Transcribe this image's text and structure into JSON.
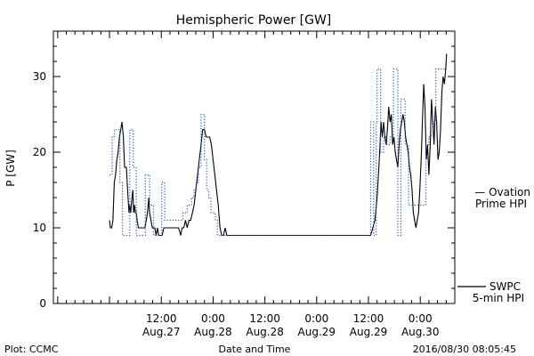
{
  "chart_data": {
    "type": "line",
    "title": "Hemispheric Power [GW]",
    "xlabel": "Date and Time",
    "ylabel": "P [GW]",
    "ylim": [
      0,
      36
    ],
    "xlim": [
      -13,
      80
    ],
    "x_units": "hours from 2016-08-27 00:00",
    "yticks": [
      0,
      10,
      20,
      30
    ],
    "xticks": [
      {
        "x": 12,
        "time": "12:00",
        "date": "Aug.27"
      },
      {
        "x": 24,
        "time": "0:00",
        "date": "Aug.28"
      },
      {
        "x": 36,
        "time": "12:00",
        "date": "Aug.28"
      },
      {
        "x": 48,
        "time": "0:00",
        "date": "Aug.29"
      },
      {
        "x": 60,
        "time": "12:00",
        "date": "Aug.29"
      },
      {
        "x": 72,
        "time": "0:00",
        "date": "Aug.30"
      }
    ],
    "grid": false,
    "legend": [
      {
        "label": "— Ovation",
        "label2": "Prime HPI",
        "color": "#2a55c8"
      },
      {
        "label": "SWPC",
        "label2": "5-min HPI",
        "color": "#000000"
      }
    ],
    "series": [
      {
        "name": "SWPC 5-min HPI",
        "style": "solid",
        "color": "#000000",
        "points": [
          [
            0.0,
            11
          ],
          [
            0.2,
            10
          ],
          [
            0.5,
            10
          ],
          [
            0.8,
            11
          ],
          [
            1.1,
            16
          ],
          [
            1.4,
            17
          ],
          [
            1.7,
            19
          ],
          [
            2.0,
            20
          ],
          [
            2.3,
            22
          ],
          [
            2.6,
            23
          ],
          [
            2.9,
            24
          ],
          [
            3.2,
            22
          ],
          [
            3.5,
            18
          ],
          [
            3.9,
            18
          ],
          [
            4.1,
            16
          ],
          [
            4.3,
            14
          ],
          [
            4.5,
            12
          ],
          [
            4.7,
            13
          ],
          [
            4.9,
            12
          ],
          [
            5.2,
            14
          ],
          [
            5.4,
            15
          ],
          [
            5.6,
            12
          ],
          [
            5.8,
            13
          ],
          [
            6.0,
            12
          ],
          [
            6.2,
            12
          ],
          [
            6.4,
            11
          ],
          [
            6.7,
            10
          ],
          [
            7.0,
            10
          ],
          [
            7.3,
            10
          ],
          [
            7.6,
            10
          ],
          [
            7.9,
            10
          ],
          [
            8.2,
            10
          ],
          [
            8.5,
            11
          ],
          [
            8.8,
            12
          ],
          [
            9.1,
            14
          ],
          [
            9.3,
            12
          ],
          [
            9.6,
            11
          ],
          [
            9.9,
            10
          ],
          [
            10.2,
            10
          ],
          [
            10.5,
            10
          ],
          [
            10.8,
            9
          ],
          [
            11.1,
            10
          ],
          [
            11.4,
            9
          ],
          [
            11.8,
            9
          ],
          [
            12.2,
            9
          ],
          [
            12.6,
            10
          ],
          [
            13.0,
            10
          ],
          [
            13.5,
            10
          ],
          [
            14.0,
            10
          ],
          [
            14.5,
            10
          ],
          [
            15.0,
            10
          ],
          [
            15.5,
            10
          ],
          [
            16.0,
            10
          ],
          [
            16.5,
            9
          ],
          [
            16.8,
            10
          ],
          [
            17.2,
            10
          ],
          [
            17.6,
            11
          ],
          [
            18.0,
            10
          ],
          [
            18.4,
            11
          ],
          [
            18.8,
            11
          ],
          [
            19.2,
            12
          ],
          [
            19.6,
            13
          ],
          [
            20.0,
            15
          ],
          [
            20.4,
            17
          ],
          [
            20.8,
            19
          ],
          [
            21.2,
            21
          ],
          [
            21.6,
            23
          ],
          [
            22.0,
            23
          ],
          [
            22.4,
            22
          ],
          [
            22.8,
            22
          ],
          [
            23.2,
            22
          ],
          [
            23.6,
            21
          ],
          [
            24.0,
            19
          ],
          [
            24.4,
            17
          ],
          [
            24.8,
            15
          ],
          [
            25.2,
            13
          ],
          [
            25.6,
            10
          ],
          [
            26.0,
            9
          ],
          [
            26.4,
            9
          ],
          [
            26.8,
            10
          ],
          [
            27.2,
            9
          ],
          [
            27.6,
            9
          ],
          [
            28.0,
            9
          ],
          [
            32.0,
            9
          ],
          [
            36.0,
            9
          ],
          [
            40.0,
            9
          ],
          [
            44.0,
            9
          ],
          [
            48.0,
            9
          ],
          [
            52.0,
            9
          ],
          [
            56.0,
            9
          ],
          [
            58.0,
            9
          ],
          [
            60.0,
            9
          ],
          [
            60.5,
            9
          ],
          [
            61.0,
            10
          ],
          [
            61.5,
            11
          ],
          [
            62.0,
            14
          ],
          [
            62.3,
            17
          ],
          [
            62.6,
            20
          ],
          [
            62.9,
            24
          ],
          [
            63.2,
            22
          ],
          [
            63.5,
            24
          ],
          [
            63.8,
            22
          ],
          [
            64.1,
            21
          ],
          [
            64.4,
            23
          ],
          [
            64.7,
            26
          ],
          [
            65.0,
            24
          ],
          [
            65.3,
            25
          ],
          [
            65.6,
            21
          ],
          [
            65.9,
            22
          ],
          [
            66.2,
            20
          ],
          [
            66.5,
            19
          ],
          [
            66.8,
            18
          ],
          [
            67.1,
            21
          ],
          [
            67.4,
            23
          ],
          [
            67.7,
            24
          ],
          [
            68.0,
            25
          ],
          [
            68.3,
            24
          ],
          [
            68.6,
            22
          ],
          [
            68.9,
            21
          ],
          [
            69.2,
            20
          ],
          [
            69.5,
            18
          ],
          [
            69.8,
            17
          ],
          [
            70.1,
            15
          ],
          [
            70.4,
            12
          ],
          [
            70.7,
            11
          ],
          [
            71.0,
            10
          ],
          [
            71.3,
            11
          ],
          [
            71.6,
            12
          ],
          [
            71.9,
            15
          ],
          [
            72.2,
            19
          ],
          [
            72.5,
            24
          ],
          [
            72.8,
            29
          ],
          [
            73.1,
            26
          ],
          [
            73.4,
            19
          ],
          [
            73.7,
            21
          ],
          [
            74.0,
            17
          ],
          [
            74.3,
            21
          ],
          [
            74.6,
            27
          ],
          [
            74.9,
            24
          ],
          [
            75.2,
            21
          ],
          [
            75.5,
            26
          ],
          [
            75.8,
            24
          ],
          [
            76.1,
            19
          ],
          [
            76.4,
            20
          ],
          [
            76.7,
            23
          ],
          [
            77.0,
            28
          ],
          [
            77.3,
            30
          ],
          [
            77.6,
            29
          ],
          [
            77.9,
            31
          ],
          [
            78.1,
            33
          ]
        ]
      },
      {
        "name": "Ovation Prime HPI",
        "style": "dotted",
        "color": "#2a55c8",
        "points": [
          [
            0.0,
            17
          ],
          [
            0.6,
            17
          ],
          [
            0.6,
            22
          ],
          [
            1.1,
            22
          ],
          [
            1.1,
            23
          ],
          [
            2.4,
            23
          ],
          [
            2.4,
            16
          ],
          [
            3.0,
            16
          ],
          [
            3.0,
            9
          ],
          [
            4.7,
            9
          ],
          [
            4.7,
            23
          ],
          [
            5.5,
            23
          ],
          [
            5.5,
            18
          ],
          [
            6.2,
            18
          ],
          [
            6.2,
            9
          ],
          [
            8.3,
            9
          ],
          [
            8.3,
            17
          ],
          [
            9.3,
            17
          ],
          [
            9.3,
            13
          ],
          [
            10.2,
            13
          ],
          [
            10.2,
            9
          ],
          [
            12.1,
            9
          ],
          [
            12.1,
            16
          ],
          [
            12.8,
            16
          ],
          [
            12.8,
            11
          ],
          [
            13.5,
            11
          ],
          [
            13.5,
            11
          ],
          [
            17.0,
            11
          ],
          [
            17.0,
            12
          ],
          [
            18.0,
            12
          ],
          [
            18.0,
            13
          ],
          [
            19.0,
            13
          ],
          [
            19.0,
            14
          ],
          [
            19.6,
            14
          ],
          [
            19.6,
            15
          ],
          [
            20.1,
            15
          ],
          [
            20.1,
            16
          ],
          [
            20.6,
            16
          ],
          [
            20.6,
            18
          ],
          [
            21.2,
            18
          ],
          [
            21.2,
            25
          ],
          [
            22.0,
            25
          ],
          [
            22.0,
            19
          ],
          [
            22.5,
            19
          ],
          [
            22.5,
            15
          ],
          [
            23.0,
            15
          ],
          [
            23.0,
            14
          ],
          [
            23.5,
            14
          ],
          [
            23.5,
            12
          ],
          [
            24.5,
            12
          ],
          [
            24.5,
            11
          ],
          [
            25.0,
            11
          ],
          [
            25.0,
            9
          ],
          [
            60.5,
            9
          ],
          [
            60.5,
            24
          ],
          [
            61.2,
            24
          ],
          [
            61.2,
            9
          ],
          [
            61.8,
            9
          ],
          [
            61.8,
            24
          ],
          [
            62.0,
            24
          ],
          [
            62.0,
            31
          ],
          [
            62.8,
            31
          ],
          [
            62.8,
            20
          ],
          [
            63.5,
            20
          ],
          [
            63.5,
            22
          ],
          [
            64.3,
            22
          ],
          [
            64.3,
            21
          ],
          [
            65.0,
            21
          ],
          [
            65.0,
            22
          ],
          [
            65.8,
            22
          ],
          [
            65.8,
            31
          ],
          [
            66.8,
            31
          ],
          [
            66.8,
            9
          ],
          [
            67.5,
            9
          ],
          [
            67.5,
            27
          ],
          [
            68.5,
            27
          ],
          [
            68.5,
            21
          ],
          [
            69.3,
            21
          ],
          [
            69.3,
            13
          ],
          [
            70.8,
            13
          ],
          [
            70.8,
            13
          ],
          [
            72.5,
            13
          ],
          [
            72.5,
            13
          ],
          [
            73.3,
            13
          ],
          [
            73.3,
            21
          ],
          [
            74.0,
            21
          ],
          [
            74.0,
            22
          ],
          [
            74.5,
            22
          ],
          [
            74.5,
            23
          ],
          [
            75.1,
            23
          ],
          [
            75.1,
            24
          ],
          [
            75.6,
            24
          ],
          [
            75.6,
            31
          ],
          [
            77.0,
            31
          ],
          [
            77.0,
            31
          ],
          [
            78.1,
            31
          ]
        ]
      }
    ]
  },
  "footer": {
    "left": "Plot: CCMC",
    "center": "Date and Time",
    "right": "2016/08/30 08:05:45"
  }
}
